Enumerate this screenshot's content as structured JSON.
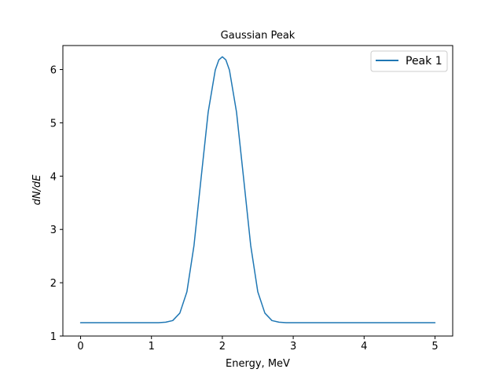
{
  "chart_data": {
    "type": "line",
    "title": "Gaussian Peak",
    "xlabel": "Energy, MeV",
    "ylabel": "dN/dE",
    "xlim": [
      -0.25,
      5.25
    ],
    "ylim": [
      1.0,
      6.45
    ],
    "xticks": [
      0,
      1,
      2,
      3,
      4,
      5
    ],
    "yticks": [
      1,
      2,
      3,
      4,
      5,
      6
    ],
    "grid": false,
    "legend_position": "top-right",
    "series": [
      {
        "name": "Peak 1",
        "color": "#1f77b4",
        "x": [
          0.0,
          0.25,
          0.5,
          0.75,
          1.0,
          1.1,
          1.2,
          1.3,
          1.4,
          1.5,
          1.6,
          1.7,
          1.8,
          1.9,
          1.95,
          2.0,
          2.05,
          2.1,
          2.2,
          2.3,
          2.4,
          2.5,
          2.6,
          2.7,
          2.8,
          2.9,
          3.0,
          3.5,
          4.0,
          4.5,
          5.0
        ],
        "y": [
          1.25,
          1.25,
          1.25,
          1.25,
          1.25,
          1.25,
          1.26,
          1.29,
          1.43,
          1.83,
          2.7,
          3.96,
          5.2,
          5.99,
          6.18,
          6.24,
          6.18,
          5.99,
          5.2,
          3.96,
          2.7,
          1.83,
          1.43,
          1.29,
          1.26,
          1.25,
          1.25,
          1.25,
          1.25,
          1.25,
          1.25
        ]
      }
    ]
  }
}
